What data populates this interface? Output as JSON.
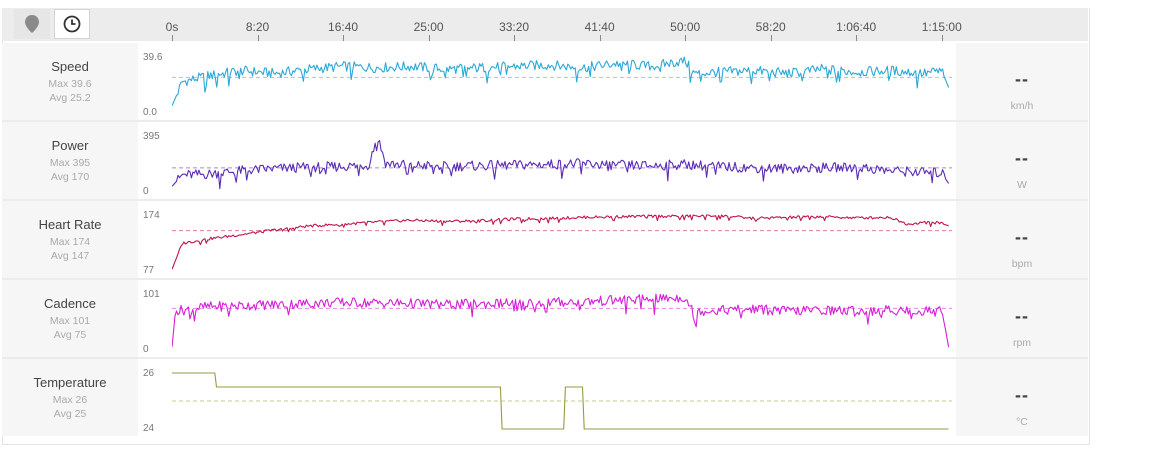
{
  "toolbar": {
    "location_icon": "map-pin-icon",
    "time_icon": "clock-icon"
  },
  "time_axis": {
    "ticks": [
      "0s",
      "8:20",
      "16:40",
      "25:00",
      "33:20",
      "41:40",
      "50:00",
      "58:20",
      "1:06:40",
      "1:15:00"
    ],
    "tick_seconds": [
      0,
      500,
      1000,
      1500,
      2000,
      2500,
      3000,
      3500,
      4000,
      4500
    ],
    "max_seconds": 4560
  },
  "metrics": [
    {
      "key": "speed",
      "name": "Speed",
      "max_label": "Max 39.6",
      "avg_label": "Avg 25.2",
      "ymax_label": "39.6",
      "ymin_label": "0.0",
      "current": "--",
      "unit": "km/h",
      "color": "#2aa9d6"
    },
    {
      "key": "power",
      "name": "Power",
      "max_label": "Max 395",
      "avg_label": "Avg 170",
      "ymax_label": "395",
      "ymin_label": "0",
      "current": "--",
      "unit": "W",
      "color": "#5b2bb5"
    },
    {
      "key": "hr",
      "name": "Heart Rate",
      "max_label": "Max 174",
      "avg_label": "Avg 147",
      "ymax_label": "174",
      "ymin_label": "77",
      "current": "--",
      "unit": "bpm",
      "color": "#c0134a"
    },
    {
      "key": "cadence",
      "name": "Cadence",
      "max_label": "Max 101",
      "avg_label": "Avg 75",
      "ymax_label": "101",
      "ymin_label": "0",
      "current": "--",
      "unit": "rpm",
      "color": "#d61fd6"
    },
    {
      "key": "temp",
      "name": "Temperature",
      "max_label": "Max 26",
      "avg_label": "Avg 25",
      "ymax_label": "26",
      "ymin_label": "24",
      "current": "--",
      "unit": "°C",
      "color": "#9a9a3a"
    }
  ],
  "chart_data": [
    {
      "type": "line",
      "series": [
        {
          "name": "Speed",
          "x": [
            0,
            60,
            200,
            400,
            600,
            800,
            1000,
            1200,
            1400,
            1600,
            1800,
            2000,
            2200,
            2400,
            2600,
            2800,
            3000,
            3050,
            3200,
            3400,
            3600,
            3800,
            4000,
            4200,
            4400,
            4500,
            4540
          ],
          "y": [
            5,
            22,
            26,
            30,
            28,
            31,
            33,
            32,
            33,
            31,
            32,
            33,
            34,
            32,
            35,
            33,
            37,
            28,
            29,
            30,
            28,
            31,
            29,
            30,
            28,
            30,
            18
          ]
        }
      ],
      "ylim": [
        0,
        39.6
      ],
      "avg": 25.2
    },
    {
      "type": "line",
      "series": [
        {
          "name": "Power",
          "x": [
            0,
            60,
            200,
            400,
            600,
            800,
            1000,
            1150,
            1200,
            1250,
            1400,
            1600,
            1800,
            2000,
            2200,
            2400,
            2600,
            2800,
            3000,
            3200,
            3400,
            3600,
            3800,
            4000,
            4200,
            4400,
            4500,
            4540
          ],
          "y": [
            40,
            120,
            125,
            150,
            165,
            175,
            180,
            190,
            395,
            200,
            190,
            180,
            185,
            190,
            195,
            200,
            190,
            185,
            195,
            180,
            170,
            165,
            170,
            175,
            150,
            140,
            135,
            60
          ]
        }
      ],
      "ylim": [
        0,
        395
      ],
      "avg": 170
    },
    {
      "type": "line",
      "series": [
        {
          "name": "Heart Rate",
          "x": [
            0,
            60,
            200,
            400,
            600,
            800,
            1000,
            1200,
            1400,
            1600,
            1800,
            2000,
            2200,
            2400,
            2600,
            2800,
            3000,
            3200,
            3400,
            3600,
            3800,
            4000,
            4200,
            4300,
            4400,
            4500,
            4540
          ],
          "y": [
            80,
            125,
            132,
            140,
            148,
            155,
            158,
            162,
            165,
            163,
            164,
            167,
            168,
            170,
            171,
            172,
            172,
            173,
            168,
            170,
            171,
            169,
            170,
            158,
            162,
            160,
            155
          ]
        }
      ],
      "ylim": [
        77,
        174
      ],
      "avg": 147
    },
    {
      "type": "line",
      "series": [
        {
          "name": "Cadence",
          "x": [
            0,
            20,
            200,
            400,
            600,
            800,
            1000,
            1200,
            1400,
            1600,
            1800,
            2000,
            2200,
            2400,
            2600,
            2800,
            3000,
            3050,
            3200,
            3400,
            3600,
            3800,
            4000,
            4200,
            4400,
            4500,
            4540
          ],
          "y": [
            5,
            70,
            78,
            80,
            82,
            84,
            86,
            85,
            84,
            82,
            83,
            85,
            86,
            87,
            90,
            92,
            95,
            70,
            72,
            74,
            70,
            72,
            70,
            72,
            70,
            76,
            5
          ]
        }
      ],
      "ylim": [
        0,
        101
      ],
      "avg": 75
    },
    {
      "type": "line",
      "series": [
        {
          "name": "Temperature",
          "x": [
            0,
            250,
            260,
            1920,
            1930,
            2290,
            2300,
            2400,
            2410,
            4540
          ],
          "y": [
            26,
            26,
            25.5,
            25.5,
            24,
            24,
            25.5,
            25.5,
            24,
            24
          ]
        }
      ],
      "ylim": [
        24,
        26
      ],
      "avg": 25
    }
  ]
}
